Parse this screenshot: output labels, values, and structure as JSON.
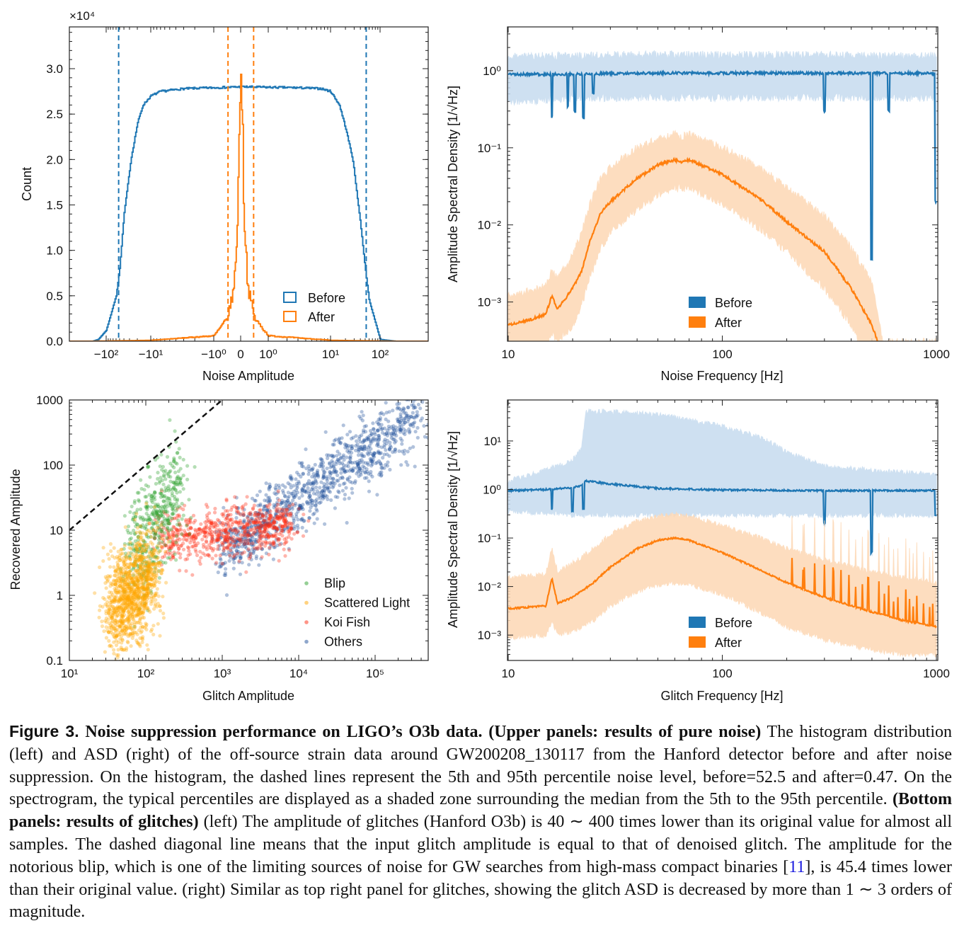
{
  "colors": {
    "before": "#1f77b4",
    "after": "#ff7f0e",
    "before_band": "#c6dbef",
    "after_band": "#fdd8b5",
    "blip": "#2ca02c",
    "scattered_light": "#ffa500",
    "koi_fish": "#ff2a10",
    "others": "#1f4f9a"
  },
  "chart_data": [
    {
      "id": "histogram",
      "type": "line",
      "xlabel": "Noise Amplitude",
      "ylabel": "Count",
      "y_multiplier": "×10⁴",
      "xscale": "symlog",
      "ylim": [
        0,
        3.46
      ],
      "xticks": [
        {
          "v": -100,
          "label": "−10²"
        },
        {
          "v": -10,
          "label": "−10¹"
        },
        {
          "v": -1,
          "label": "−10⁰"
        },
        {
          "v": 0,
          "label": "0"
        },
        {
          "v": 1,
          "label": "10⁰"
        },
        {
          "v": 10,
          "label": "10¹"
        },
        {
          "v": 100,
          "label": "10²"
        }
      ],
      "yticks": [
        {
          "v": 0,
          "label": "0.0"
        },
        {
          "v": 0.5,
          "label": "0.5"
        },
        {
          "v": 1,
          "label": "1.0"
        },
        {
          "v": 1.5,
          "label": "1.5"
        },
        {
          "v": 2,
          "label": "2.0"
        },
        {
          "v": 2.5,
          "label": "2.5"
        },
        {
          "v": 3,
          "label": "3.0"
        }
      ],
      "legend": "lower-right",
      "series": [
        {
          "name": "Before",
          "color": "before",
          "x": [
            -200,
            -150,
            -100,
            -60,
            -50,
            -40,
            -28,
            -20,
            -15,
            -10,
            -7,
            -3,
            0,
            3,
            7,
            10,
            15,
            20,
            28,
            40,
            50,
            60,
            100,
            200
          ],
          "y": [
            0,
            0.02,
            0.12,
            0.5,
            0.8,
            1.4,
            2.0,
            2.4,
            2.6,
            2.7,
            2.75,
            2.78,
            2.8,
            2.79,
            2.78,
            2.75,
            2.6,
            2.35,
            2.0,
            1.3,
            0.8,
            0.45,
            0.02,
            0
          ]
        },
        {
          "name": "After",
          "color": "after",
          "x": [
            -200,
            -10,
            -1,
            -0.5,
            -0.25,
            -0.12,
            -0.05,
            0,
            0.05,
            0.12,
            0.25,
            0.5,
            1,
            10,
            200
          ],
          "y": [
            0,
            0.01,
            0.06,
            0.25,
            0.6,
            1.4,
            2.4,
            3.3,
            2.4,
            1.4,
            0.6,
            0.25,
            0.06,
            0.01,
            0
          ]
        }
      ],
      "percentile_lines": [
        {
          "series": "Before",
          "values": [
            -52.5,
            52.5
          ]
        },
        {
          "series": "After",
          "values": [
            -0.47,
            0.47
          ]
        }
      ]
    },
    {
      "id": "noise-asd",
      "type": "area",
      "xlabel": "Noise Frequency [Hz]",
      "ylabel": "Amplitude Spectral Density [1/√Hz]",
      "xscale": "log",
      "yscale": "log",
      "xlim": [
        10,
        1000
      ],
      "ylim": [
        0.00031,
        3.7
      ],
      "xticks": [
        {
          "v": 10,
          "label": "10"
        },
        {
          "v": 100,
          "label": "100"
        },
        {
          "v": 1000,
          "label": "1000"
        }
      ],
      "yticks": [
        {
          "v": 1,
          "label": "10⁰"
        },
        {
          "v": 0.1,
          "label": "10⁻¹"
        },
        {
          "v": 0.01,
          "label": "10⁻²"
        },
        {
          "v": 0.001,
          "label": "10⁻³"
        }
      ],
      "legend": "lower-center",
      "series": [
        {
          "name": "Before",
          "color": "before",
          "band": "before_band",
          "f": [
            10,
            15,
            20,
            30,
            50,
            100,
            200,
            500,
            1000
          ],
          "median": [
            0.9,
            0.9,
            0.9,
            0.92,
            0.93,
            0.93,
            0.93,
            0.93,
            0.92
          ],
          "p5": [
            0.4,
            0.42,
            0.45,
            0.45,
            0.45,
            0.45,
            0.45,
            0.45,
            0.45
          ],
          "p95": [
            1.5,
            1.55,
            1.55,
            1.6,
            1.6,
            1.6,
            1.6,
            1.55,
            1.55
          ],
          "dips": [
            {
              "f": 16,
              "v": 0.25
            },
            {
              "f": 19,
              "v": 0.35
            },
            {
              "f": 20.5,
              "v": 0.3
            },
            {
              "f": 22.5,
              "v": 0.25
            },
            {
              "f": 25,
              "v": 0.5
            },
            {
              "f": 300,
              "v": 0.3
            },
            {
              "f": 498,
              "v": 0.0035
            },
            {
              "f": 600,
              "v": 0.3
            },
            {
              "f": 995,
              "v": 0.02
            }
          ]
        },
        {
          "name": "After",
          "color": "after",
          "band": "after_band",
          "f": [
            10,
            13,
            15,
            16,
            17,
            20,
            22,
            24,
            27,
            30,
            40,
            50,
            60,
            65,
            70,
            100,
            150,
            200,
            300,
            400,
            500,
            560
          ],
          "median": [
            0.0005,
            0.0006,
            0.0007,
            0.0012,
            0.0008,
            0.0015,
            0.0025,
            0.006,
            0.014,
            0.02,
            0.04,
            0.06,
            0.07,
            0.065,
            0.07,
            0.045,
            0.022,
            0.011,
            0.0045,
            0.0015,
            0.0005,
            0.0002
          ],
          "p5": [
            0.0002,
            0.00022,
            0.00025,
            0.0004,
            0.0003,
            0.0005,
            0.0009,
            0.002,
            0.005,
            0.008,
            0.016,
            0.025,
            0.03,
            0.03,
            0.03,
            0.019,
            0.009,
            0.0045,
            0.0015,
            0.0005,
            0.00015,
            0.0001
          ],
          "p95": [
            0.0012,
            0.0014,
            0.0017,
            0.0025,
            0.002,
            0.004,
            0.008,
            0.018,
            0.04,
            0.055,
            0.1,
            0.13,
            0.15,
            0.14,
            0.15,
            0.1,
            0.055,
            0.03,
            0.013,
            0.005,
            0.0018,
            0.0003
          ]
        }
      ]
    },
    {
      "id": "glitch-amplitude-scatter",
      "type": "scatter",
      "xlabel": "Glitch Amplitude",
      "ylabel": "Recovered Amplitude",
      "xscale": "log",
      "yscale": "log",
      "xlim": [
        10,
        490000
      ],
      "ylim": [
        0.1,
        1000
      ],
      "xticks": [
        {
          "v": 10,
          "label": "10¹"
        },
        {
          "v": 100,
          "label": "10²"
        },
        {
          "v": 1000,
          "label": "10³"
        },
        {
          "v": 10000,
          "label": "10⁴"
        },
        {
          "v": 100000,
          "label": "10⁵"
        }
      ],
      "yticks": [
        {
          "v": 0.1,
          "label": "0.1"
        },
        {
          "v": 1,
          "label": "1"
        },
        {
          "v": 10,
          "label": "10"
        },
        {
          "v": 100,
          "label": "100"
        },
        {
          "v": 1000,
          "label": "1000"
        }
      ],
      "reference_line": {
        "label": "",
        "x": [
          10,
          1000
        ],
        "y": [
          10,
          1000
        ],
        "style": "dashed"
      },
      "legend": "lower-right",
      "series": [
        {
          "name": "Others",
          "color": "others",
          "log10_x_range": [
            3.0,
            5.6
          ],
          "log10_y_at_start": 0.7,
          "log10_y_at_end": 2.75,
          "log10_y_spread": 0.25,
          "n": 1100
        },
        {
          "name": "Koi Fish",
          "color": "koi_fish",
          "log10_x_range": [
            2.2,
            3.9
          ],
          "log10_y_at_start": 0.85,
          "log10_y_at_end": 1.1,
          "log10_y_spread": 0.2,
          "n": 700
        },
        {
          "name": "Blip",
          "color": "blip",
          "log10_x_range": [
            1.8,
            2.45
          ],
          "log10_y_at_start": 0.6,
          "log10_y_at_end": 1.7,
          "log10_y_spread": 0.4,
          "n": 450
        },
        {
          "name": "Scattered Light",
          "color": "scattered_light",
          "log10_x_range": [
            1.55,
            2.1
          ],
          "log10_y_at_start": -0.3,
          "log10_y_at_end": 0.4,
          "log10_y_spread": 0.38,
          "n": 1100
        }
      ]
    },
    {
      "id": "glitch-asd",
      "type": "area",
      "xlabel": "Glitch Frequency [Hz]",
      "ylabel": "Amplitude Spectral Density [1/√Hz]",
      "xscale": "log",
      "yscale": "log",
      "xlim": [
        10,
        1000
      ],
      "ylim": [
        0.0003,
        70
      ],
      "xticks": [
        {
          "v": 10,
          "label": "10"
        },
        {
          "v": 100,
          "label": "100"
        },
        {
          "v": 1000,
          "label": "1000"
        }
      ],
      "yticks": [
        {
          "v": 10,
          "label": "10¹"
        },
        {
          "v": 1,
          "label": "10⁰"
        },
        {
          "v": 0.1,
          "label": "10⁻¹"
        },
        {
          "v": 0.01,
          "label": "10⁻²"
        },
        {
          "v": 0.001,
          "label": "10⁻³"
        }
      ],
      "legend": "lower-center",
      "series": [
        {
          "name": "Before",
          "color": "before",
          "band": "before_band",
          "f": [
            10,
            15,
            20,
            22,
            23,
            30,
            50,
            100,
            150,
            200,
            300,
            500,
            1000
          ],
          "median": [
            0.95,
            1.0,
            1.1,
            1.2,
            1.5,
            1.3,
            1.05,
            0.98,
            0.97,
            0.96,
            0.95,
            0.95,
            0.95
          ],
          "p5": [
            0.35,
            0.33,
            0.3,
            0.3,
            0.3,
            0.3,
            0.3,
            0.3,
            0.3,
            0.3,
            0.3,
            0.3,
            0.3
          ],
          "p95": [
            1.5,
            2.5,
            4,
            7,
            40,
            40,
            35,
            20,
            12,
            6,
            3,
            2.5,
            2
          ],
          "dips": [
            {
              "f": 16,
              "v": 0.4
            },
            {
              "f": 20,
              "v": 0.35
            },
            {
              "f": 22.5,
              "v": 0.4
            },
            {
              "f": 300,
              "v": 0.2
            },
            {
              "f": 498,
              "v": 0.05
            },
            {
              "f": 995,
              "v": 0.3
            }
          ]
        },
        {
          "name": "After",
          "color": "after",
          "band": "after_band",
          "f": [
            10,
            15,
            16,
            17,
            20,
            25,
            30,
            40,
            50,
            60,
            70,
            100,
            150,
            200,
            300,
            500,
            700,
            1000
          ],
          "median": [
            0.0035,
            0.004,
            0.015,
            0.0045,
            0.006,
            0.012,
            0.025,
            0.06,
            0.09,
            0.1,
            0.09,
            0.05,
            0.022,
            0.012,
            0.006,
            0.003,
            0.002,
            0.0015
          ],
          "p5": [
            0.0009,
            0.001,
            0.002,
            0.001,
            0.0012,
            0.002,
            0.004,
            0.008,
            0.011,
            0.012,
            0.011,
            0.007,
            0.003,
            0.0015,
            0.0008,
            0.0005,
            0.0004,
            0.0004
          ],
          "p95": [
            0.015,
            0.018,
            0.06,
            0.02,
            0.03,
            0.06,
            0.12,
            0.22,
            0.28,
            0.3,
            0.28,
            0.18,
            0.1,
            0.06,
            0.035,
            0.02,
            0.015,
            0.012
          ]
        }
      ]
    }
  ],
  "caption": {
    "label": "Figure 3.",
    "title": " Noise suppression performance on LIGO’s O3b data.",
    "upper_bold": " (Upper panels: results of pure noise)",
    "text1": " The histogram distribution (left) and ASD (right) of the off-source strain data around GW200208_130117 from the Hanford detector before and after noise suppression. On the histogram, the dashed lines represent the 5th and 95th percentile noise level, before=52.5 and after=0.47. On the spectrogram, the typical percentiles are displayed as a shaded zone surrounding the median from the 5th to the 95th percentile.",
    "bottom_bold": " (Bottom panels: results of glitches)",
    "text2": " (left) The amplitude of glitches (Hanford O3b) is 40 ∼ 400 times lower than its original value for almost all samples. The dashed diagonal line means that the input glitch amplitude is equal to that of denoised glitch. The amplitude for the notorious blip, which is one of the limiting sources of noise for GW searches from high-mass compact binaries [",
    "citation": "11",
    "text3": "], is 45.4 times lower than their original value. (right) Similar as top right panel for glitches, showing the glitch ASD is decreased by more than 1 ∼ 3 orders of magnitude."
  }
}
